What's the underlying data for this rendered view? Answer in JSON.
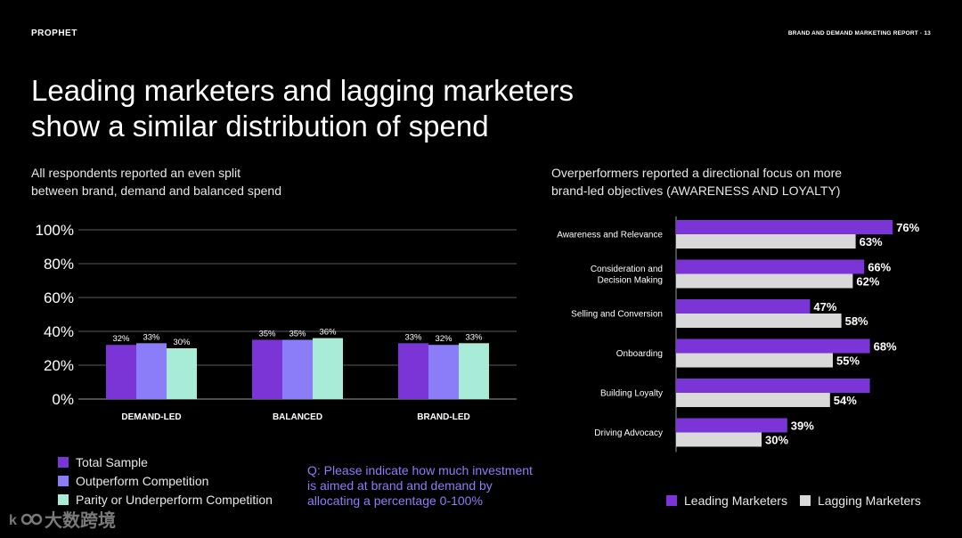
{
  "header": {
    "brand": "PROPHET",
    "report": "BRAND AND DEMAND MARKETING REPORT · 13"
  },
  "title_line1": "Leading marketers and lagging marketers",
  "title_line2": "show a similar distribution of spend",
  "left_subtitle_line1": "All respondents reported an even split",
  "left_subtitle_line2": "between brand, demand and balanced spend",
  "right_subtitle_line1": "Overperformers reported a directional focus on more",
  "right_subtitle_line2": "brand-led objectives (AWARENESS AND LOYALTY)",
  "question_line1": "Q: Please indicate how much investment",
  "question_line2": "is aimed at brand and demand by",
  "question_line3": "allocating a percentage 0-100%",
  "watermark_text": "大数跨境",
  "colors": {
    "purple": "#7b35d6",
    "lavender": "#8b7cf7",
    "mint": "#a8ecd7",
    "lightgray": "#d9d9d9",
    "question": "#8f7cf7"
  },
  "chart_data": [
    {
      "type": "bar",
      "title": "",
      "categories": [
        "DEMAND-LED",
        "BALANCED",
        "BRAND-LED"
      ],
      "series": [
        {
          "name": "Total Sample",
          "values": [
            32,
            35,
            33
          ],
          "labels": [
            "32%",
            "35%",
            "33%"
          ]
        },
        {
          "name": "Outperform Competition",
          "values": [
            33,
            35,
            32
          ],
          "labels": [
            "33%",
            "35%",
            "32%"
          ]
        },
        {
          "name": "Parity or Underperform Competition",
          "values": [
            30,
            36,
            33
          ],
          "labels": [
            "30%",
            "36%",
            "33%"
          ]
        }
      ],
      "yticks": [
        "0%",
        "20%",
        "40%",
        "60%",
        "80%",
        "100%"
      ],
      "ylim": [
        0,
        100
      ],
      "grid": true,
      "legend_position": "bottom-left"
    },
    {
      "type": "bar",
      "orientation": "horizontal",
      "title": "",
      "categories": [
        "Awareness and Relevance",
        "Consideration and Decision Making",
        "Selling and Conversion",
        "Onboarding",
        "Building Loyalty",
        "Driving Advocacy"
      ],
      "category_lines": [
        [
          "Awareness and Relevance"
        ],
        [
          "Consideration and",
          "Decision Making"
        ],
        [
          "Selling and Conversion"
        ],
        [
          "Onboarding"
        ],
        [
          "Building Loyalty"
        ],
        [
          "Driving Advocacy"
        ]
      ],
      "series": [
        {
          "name": "Leading Marketers",
          "values": [
            76,
            66,
            47,
            68,
            68,
            39
          ],
          "labels": [
            "76%",
            "66%",
            "47%",
            "68%",
            "",
            "39%"
          ]
        },
        {
          "name": "Lagging Marketers",
          "values": [
            63,
            62,
            58,
            55,
            54,
            30
          ],
          "labels": [
            "63%",
            "62%",
            "58%",
            "55%",
            "54%",
            "30%"
          ]
        }
      ],
      "xlim": [
        0,
        100
      ],
      "legend_position": "bottom-right"
    }
  ]
}
